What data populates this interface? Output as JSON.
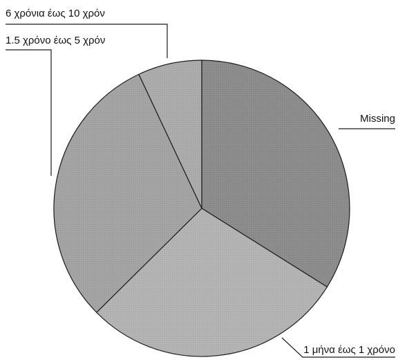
{
  "chart_data": {
    "type": "pie",
    "title": "",
    "legend": "none",
    "slices": [
      {
        "label": "Missing",
        "value": 33.9,
        "color": "#8c8c8c"
      },
      {
        "label": "1 μήνα έως 1 χρόνο",
        "value": 28.7,
        "color": "#b4b4b4"
      },
      {
        "label": "1.5 χρόνο έως 5 χρόν",
        "value": 30.4,
        "color": "#a4a4a4"
      },
      {
        "label": "6 χρόνια έως 10 χρόν",
        "value": 7.0,
        "color": "#acacac"
      }
    ]
  }
}
